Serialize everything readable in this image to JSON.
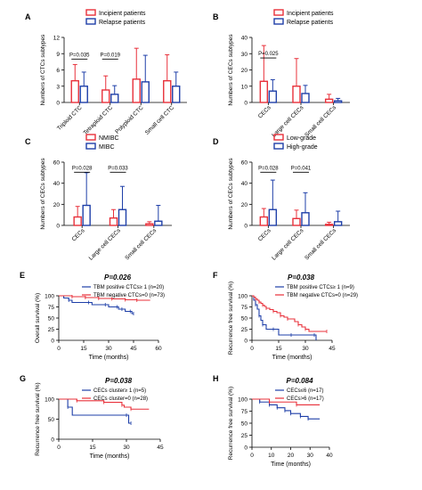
{
  "colors": {
    "red": "#e8303a",
    "blue": "#1e3fa8",
    "axis": "#000000"
  },
  "chart_data": [
    {
      "id": "A",
      "type": "bar",
      "panel_letter": "A",
      "ylabel": "Numbers of CTCs subtypes",
      "ylim": [
        0,
        12
      ],
      "yticks": [
        0,
        3,
        6,
        9,
        12
      ],
      "categories": [
        "Triploid CTC",
        "Tetraploid CTC",
        "Polyploid CTC",
        "Small cell CTC"
      ],
      "series": [
        {
          "name": "Incipient patients",
          "color": "red",
          "values": [
            4.0,
            2.3,
            4.3,
            4.0
          ],
          "errors": [
            3.0,
            2.6,
            5.7,
            4.8
          ]
        },
        {
          "name": "Relapse patients",
          "color": "blue",
          "values": [
            3.0,
            1.5,
            3.8,
            3.0
          ],
          "errors": [
            2.6,
            1.6,
            4.9,
            2.6
          ]
        }
      ],
      "annotations": [
        {
          "text": "P=0.035",
          "category": 0,
          "at": 8.5
        },
        {
          "text": "P=0.019",
          "category": 1,
          "at": 8.5
        }
      ]
    },
    {
      "id": "B",
      "type": "bar",
      "panel_letter": "B",
      "ylabel": "Numbers of CECs subtypes",
      "ylim": [
        0,
        40
      ],
      "yticks": [
        0,
        10,
        20,
        30,
        40
      ],
      "categories": [
        "CECs",
        "Large cell CECs",
        "Small cell CECs"
      ],
      "series": [
        {
          "name": "Incipient patients",
          "color": "red",
          "values": [
            13,
            10,
            2
          ],
          "errors": [
            22,
            17,
            3
          ]
        },
        {
          "name": "Relapse patients",
          "color": "blue",
          "values": [
            7,
            5.5,
            1
          ],
          "errors": [
            7,
            5,
            1.5
          ]
        }
      ],
      "annotations": [
        {
          "text": "P=0.025",
          "category": 0,
          "at": 29
        }
      ]
    },
    {
      "id": "C",
      "type": "bar",
      "panel_letter": "C",
      "ylabel": "Numbers of CECs subtypes",
      "ylim": [
        0,
        60
      ],
      "yticks": [
        0,
        20,
        40,
        60
      ],
      "categories": [
        "CECs",
        "Large cell CECs",
        "Small cell CECs"
      ],
      "series": [
        {
          "name": "NMIBC",
          "color": "red",
          "values": [
            8,
            7,
            1.5
          ],
          "errors": [
            10,
            8,
            2
          ]
        },
        {
          "name": "MIBC",
          "color": "blue",
          "values": [
            19,
            15,
            4
          ],
          "errors": [
            31,
            22,
            15
          ]
        }
      ],
      "annotations": [
        {
          "text": "P=0.028",
          "category": 0,
          "at": 53
        },
        {
          "text": "P=0.033",
          "category": 1,
          "at": 53
        }
      ]
    },
    {
      "id": "D",
      "type": "bar",
      "panel_letter": "D",
      "ylabel": "Numbers of CECs subtypes",
      "ylim": [
        0,
        60
      ],
      "yticks": [
        0,
        20,
        40,
        60
      ],
      "categories": [
        "CECs",
        "Large cell CECs",
        "Small cell CECs"
      ],
      "series": [
        {
          "name": "Low-grade",
          "color": "red",
          "values": [
            8,
            6.5,
            1
          ],
          "errors": [
            8,
            8,
            2
          ]
        },
        {
          "name": "High-grade",
          "color": "blue",
          "values": [
            15,
            12,
            3.5
          ],
          "errors": [
            28,
            19,
            10
          ]
        }
      ],
      "annotations": [
        {
          "text": "P=0.028",
          "category": 0,
          "at": 53
        },
        {
          "text": "P=0.041",
          "category": 1,
          "at": 53
        }
      ]
    },
    {
      "id": "E",
      "type": "line",
      "panel_letter": "E",
      "title": "P=0.026",
      "xlabel": "Time (months)",
      "ylabel": "Overall survival (%)",
      "xlim": [
        0,
        60
      ],
      "xticks": [
        0,
        15,
        30,
        45,
        60
      ],
      "ylim": [
        0,
        100
      ],
      "yticks": [
        0,
        25,
        50,
        75,
        100
      ],
      "series": [
        {
          "name": "TBM positive CTCs≥ 1 (n=20)",
          "color": "blue",
          "points": [
            [
              0,
              100
            ],
            [
              3,
              95
            ],
            [
              6,
              90
            ],
            [
              8,
              85
            ],
            [
              18,
              85
            ],
            [
              20,
              80
            ],
            [
              28,
              80
            ],
            [
              30,
              75
            ],
            [
              35,
              75
            ],
            [
              36,
              70
            ],
            [
              38,
              70
            ],
            [
              40,
              65
            ],
            [
              43,
              65
            ],
            [
              44,
              60
            ],
            [
              45,
              60
            ]
          ]
        },
        {
          "name": "TBM negative CTCs=0 (n=73)",
          "color": "red",
          "points": [
            [
              0,
              100
            ],
            [
              5,
              100
            ],
            [
              8,
              98
            ],
            [
              14,
              98
            ],
            [
              16,
              96
            ],
            [
              22,
              96
            ],
            [
              24,
              94
            ],
            [
              30,
              94
            ],
            [
              32,
              93
            ],
            [
              38,
              93
            ],
            [
              40,
              91
            ],
            [
              45,
              91
            ],
            [
              47,
              90
            ],
            [
              55,
              90
            ]
          ]
        }
      ]
    },
    {
      "id": "F",
      "type": "line",
      "panel_letter": "F",
      "title": "P=0.038",
      "xlabel": "Time (months)",
      "ylabel": "Recurrence free survival (%)",
      "xlim": [
        0,
        45
      ],
      "xticks": [
        0,
        15,
        30,
        45
      ],
      "ylim": [
        0,
        100
      ],
      "yticks": [
        0,
        25,
        50,
        75,
        100
      ],
      "series": [
        {
          "name": "TBM positive CTCs≥ 1 (n=9)",
          "color": "blue",
          "points": [
            [
              0,
              100
            ],
            [
              1,
              90
            ],
            [
              2,
              80
            ],
            [
              3,
              70
            ],
            [
              4,
              55
            ],
            [
              5,
              45
            ],
            [
              6,
              35
            ],
            [
              8,
              25
            ],
            [
              12,
              25
            ],
            [
              15,
              12
            ],
            [
              22,
              12
            ],
            [
              24,
              12
            ],
            [
              35,
              12
            ],
            [
              36,
              0
            ]
          ]
        },
        {
          "name": "TBM negative CTCs=0 (n=29)",
          "color": "red",
          "points": [
            [
              0,
              100
            ],
            [
              1,
              97
            ],
            [
              2,
              93
            ],
            [
              3,
              90
            ],
            [
              4,
              86
            ],
            [
              5,
              83
            ],
            [
              6,
              79
            ],
            [
              7,
              76
            ],
            [
              8,
              72
            ],
            [
              10,
              69
            ],
            [
              12,
              65
            ],
            [
              14,
              62
            ],
            [
              16,
              55
            ],
            [
              18,
              52
            ],
            [
              20,
              48
            ],
            [
              24,
              42
            ],
            [
              26,
              35
            ],
            [
              28,
              30
            ],
            [
              30,
              25
            ],
            [
              32,
              20
            ],
            [
              42,
              20
            ]
          ]
        }
      ]
    },
    {
      "id": "G",
      "type": "line",
      "panel_letter": "G",
      "title": "P=0.038",
      "xlabel": "Time (months)",
      "ylabel": "Recurrence free survival (%)",
      "xlim": [
        0,
        45
      ],
      "xticks": [
        0,
        15,
        30,
        45
      ],
      "ylim": [
        0,
        100
      ],
      "yticks": [
        0,
        50,
        100
      ],
      "series": [
        {
          "name": "CECs cluster≥ 1 (n=5)",
          "color": "blue",
          "points": [
            [
              0,
              100
            ],
            [
              3,
              100
            ],
            [
              4,
              80
            ],
            [
              6,
              60
            ],
            [
              30,
              60
            ],
            [
              31,
              40
            ],
            [
              32,
              40
            ]
          ]
        },
        {
          "name": "CECs cluster=0 (n=28)",
          "color": "red",
          "points": [
            [
              0,
              100
            ],
            [
              6,
              100
            ],
            [
              8,
              96
            ],
            [
              18,
              96
            ],
            [
              20,
              92
            ],
            [
              26,
              92
            ],
            [
              28,
              85
            ],
            [
              29,
              80
            ],
            [
              32,
              75
            ],
            [
              40,
              75
            ]
          ]
        }
      ]
    },
    {
      "id": "H",
      "type": "line",
      "panel_letter": "H",
      "title": "P=0.084",
      "xlabel": "Time (months)",
      "ylabel": "Recurrence free survival (%)",
      "xlim": [
        0,
        40
      ],
      "xticks": [
        0,
        10,
        20,
        30,
        40
      ],
      "ylim": [
        0,
        100
      ],
      "yticks": [
        0,
        25,
        50,
        75,
        100
      ],
      "series": [
        {
          "name": "CECs≤6 (n=17)",
          "color": "blue",
          "points": [
            [
              0,
              100
            ],
            [
              3,
              100
            ],
            [
              4,
              94
            ],
            [
              8,
              94
            ],
            [
              9,
              88
            ],
            [
              12,
              88
            ],
            [
              13,
              82
            ],
            [
              16,
              82
            ],
            [
              17,
              76
            ],
            [
              19,
              76
            ],
            [
              20,
              70
            ],
            [
              24,
              70
            ],
            [
              25,
              64
            ],
            [
              28,
              64
            ],
            [
              29,
              59
            ],
            [
              35,
              59
            ]
          ]
        },
        {
          "name": "CECs>6 (n=17)",
          "color": "red",
          "points": [
            [
              0,
              100
            ],
            [
              8,
              100
            ],
            [
              9,
              94
            ],
            [
              22,
              94
            ],
            [
              23,
              88
            ],
            [
              35,
              88
            ]
          ]
        }
      ]
    }
  ]
}
